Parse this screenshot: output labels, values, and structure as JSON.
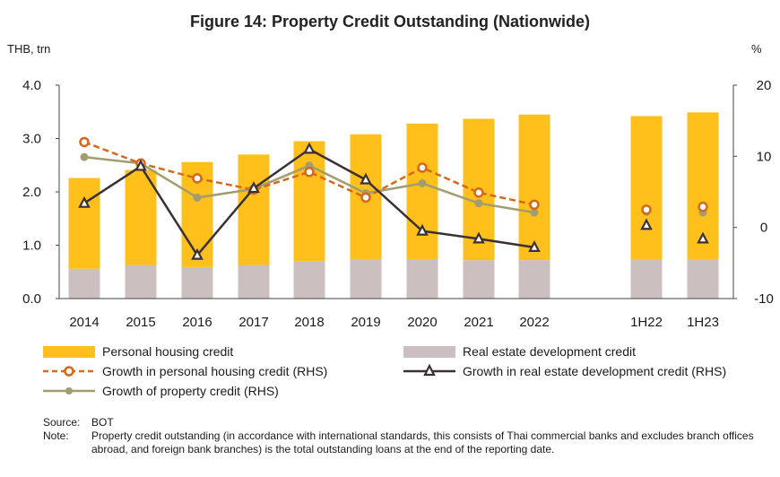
{
  "chart_data": {
    "type": "bar",
    "title": "Figure 14: Property Credit Outstanding (Nationwide)",
    "ylabel_left": "THB, trn",
    "ylabel_right": "%",
    "categories": [
      "2014",
      "2015",
      "2016",
      "2017",
      "2018",
      "2019",
      "2020",
      "2021",
      "2022",
      "1H22",
      "1H23"
    ],
    "ylim_left": [
      0,
      4
    ],
    "yticks_left": [
      "0.0",
      "1.0",
      "2.0",
      "3.0",
      "4.0"
    ],
    "ylim_right": [
      -10,
      20
    ],
    "yticks_right": [
      "-10",
      "0",
      "10",
      "20"
    ],
    "stacked": true,
    "series": [
      {
        "name": "Real estate development credit",
        "kind": "bar",
        "axis": "left",
        "color": "#ccbfbf",
        "values": [
          0.56,
          0.63,
          0.59,
          0.63,
          0.7,
          0.74,
          0.74,
          0.72,
          0.72,
          0.74,
          0.74
        ]
      },
      {
        "name": "Personal housing credit",
        "kind": "bar",
        "axis": "left",
        "color": "#ffc01c",
        "values": [
          1.7,
          1.78,
          1.97,
          2.07,
          2.25,
          2.34,
          2.54,
          2.65,
          2.73,
          2.68,
          2.75
        ]
      },
      {
        "name": "Growth in personal housing credit (RHS)",
        "kind": "line",
        "axis": "right",
        "color": "#d4681d",
        "style": "dashed",
        "marker": "circle-open",
        "values": [
          12.0,
          9.0,
          6.9,
          5.3,
          7.8,
          4.2,
          8.4,
          4.9,
          3.2,
          2.5,
          2.9
        ]
      },
      {
        "name": "Growth in real estate development credit (RHS)",
        "kind": "line",
        "axis": "right",
        "color": "#3b3134",
        "style": "solid",
        "marker": "triangle-open",
        "values": [
          3.4,
          8.6,
          -3.9,
          5.5,
          11.0,
          6.7,
          -0.5,
          -1.6,
          -2.8,
          0.3,
          -1.6
        ]
      },
      {
        "name": "Growth of property credit (RHS)",
        "kind": "line",
        "axis": "right",
        "color": "#a29c71",
        "style": "solid",
        "marker": "circle-filled",
        "values": [
          9.9,
          9.0,
          4.2,
          5.4,
          8.7,
          4.8,
          6.2,
          3.4,
          2.1,
          2.2,
          2.1
        ]
      }
    ],
    "legend": {
      "position": "bottom",
      "items": [
        "Personal housing credit",
        "Real estate development credit",
        "Growth in personal housing credit (RHS)",
        "Growth in real estate development credit (RHS)",
        "Growth of property credit (RHS)"
      ]
    },
    "grid": false
  },
  "notes": {
    "source_label": "Source:",
    "source_value": "BOT",
    "note_label": "Note:",
    "note_value": "Property credit outstanding (in accordance with international standards, this consists of Thai commercial banks and excludes branch offices abroad, and foreign bank branches) is the total outstanding loans at the end of the reporting date."
  }
}
